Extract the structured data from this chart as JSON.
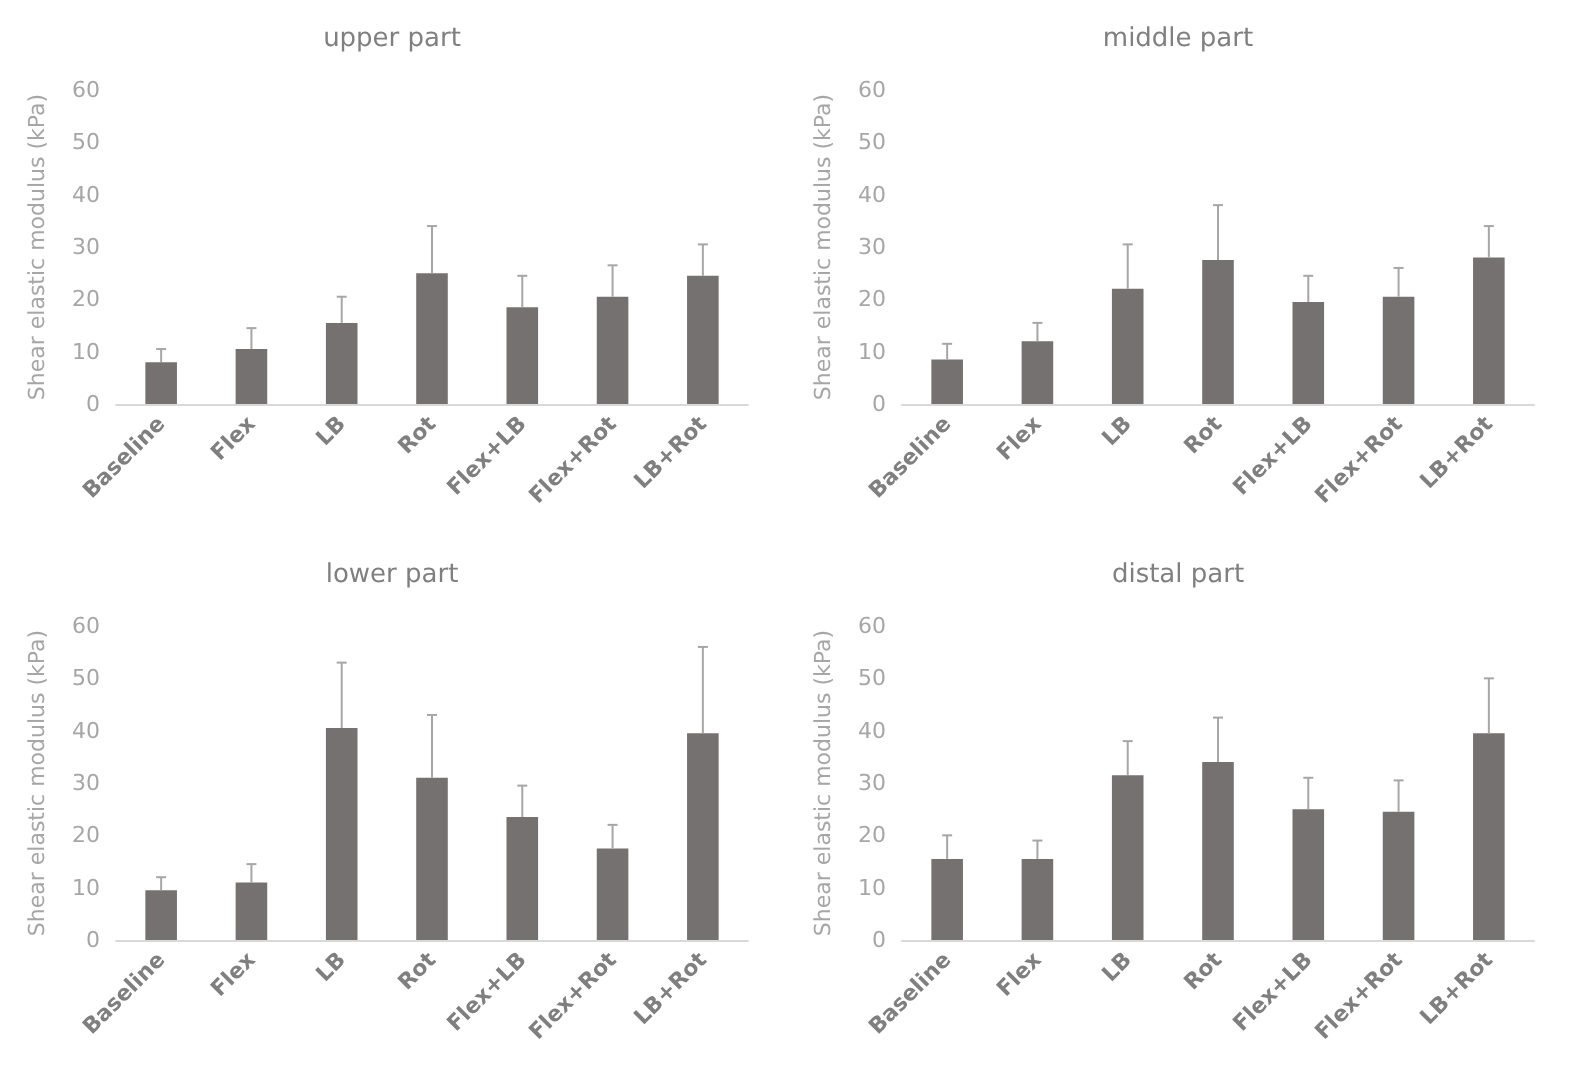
{
  "chart_data": [
    {
      "type": "bar",
      "title": "upper part",
      "ylabel": "Shear elastic modulus (kPa)",
      "categories": [
        "Baseline",
        "Flex",
        "LB",
        "Rot",
        "Flex+LB",
        "Flex+Rot",
        "LB+Rot"
      ],
      "color": "#767171",
      "values": [
        8,
        10.5,
        15.5,
        25,
        18.5,
        20.5,
        24.5
      ],
      "errors": [
        [
          8,
          10.5
        ],
        [
          10.5,
          14.5
        ],
        [
          15.5,
          20.5
        ],
        [
          25,
          34
        ],
        [
          18.5,
          24.5
        ],
        [
          20.5,
          26.5
        ],
        [
          24.5,
          30.5
        ]
      ],
      "ylim": [
        0,
        60
      ],
      "yticks": [
        0,
        10,
        20,
        30,
        40,
        50,
        60
      ],
      "grid": false
    },
    {
      "type": "bar",
      "title": "middle part",
      "ylabel": "Shear elastic modulus (kPa)",
      "categories": [
        "Baseline",
        "Flex",
        "LB",
        "Rot",
        "Flex+LB",
        "Flex+Rot",
        "LB+Rot"
      ],
      "color": "#767171",
      "values": [
        8.5,
        12,
        22,
        27.5,
        19.5,
        20.5,
        28
      ],
      "errors": [
        [
          8.5,
          11.5
        ],
        [
          12,
          15.5
        ],
        [
          22,
          30.5
        ],
        [
          27.5,
          38
        ],
        [
          19.5,
          24.5
        ],
        [
          20.5,
          26
        ],
        [
          28,
          34
        ]
      ],
      "ylim": [
        0,
        60
      ],
      "yticks": [
        0,
        10,
        20,
        30,
        40,
        50,
        60
      ],
      "grid": false
    },
    {
      "type": "bar",
      "title": "lower part",
      "ylabel": "Shear elastic modulus (kPa)",
      "categories": [
        "Baseline",
        "Flex",
        "LB",
        "Rot",
        "Flex+LB",
        "Flex+Rot",
        "LB+Rot"
      ],
      "color": "#767171",
      "values": [
        9.5,
        11,
        40.5,
        31,
        23.5,
        17.5,
        39.5
      ],
      "errors": [
        [
          9.5,
          12
        ],
        [
          11,
          14.5
        ],
        [
          40.5,
          53
        ],
        [
          31,
          43
        ],
        [
          23.5,
          29.5
        ],
        [
          17.5,
          22
        ],
        [
          39.5,
          56
        ]
      ],
      "ylim": [
        0,
        60
      ],
      "yticks": [
        0,
        10,
        20,
        30,
        40,
        50,
        60
      ],
      "grid": false
    },
    {
      "type": "bar",
      "title": "distal part",
      "ylabel": "Shear elastic modulus (kPa)",
      "categories": [
        "Baseline",
        "Flex",
        "LB",
        "Rot",
        "Flex+LB",
        "Flex+Rot",
        "LB+Rot"
      ],
      "color": "#767171",
      "values": [
        15.5,
        15.5,
        31.5,
        34,
        25,
        24.5,
        39.5
      ],
      "errors": [
        [
          15.5,
          20
        ],
        [
          15.5,
          19
        ],
        [
          31.5,
          38
        ],
        [
          34,
          42.5
        ],
        [
          25,
          31
        ],
        [
          24.5,
          30.5
        ],
        [
          39.5,
          50
        ]
      ],
      "ylim": [
        0,
        60
      ],
      "yticks": [
        0,
        10,
        20,
        30,
        40,
        50,
        60
      ],
      "grid": false
    }
  ]
}
